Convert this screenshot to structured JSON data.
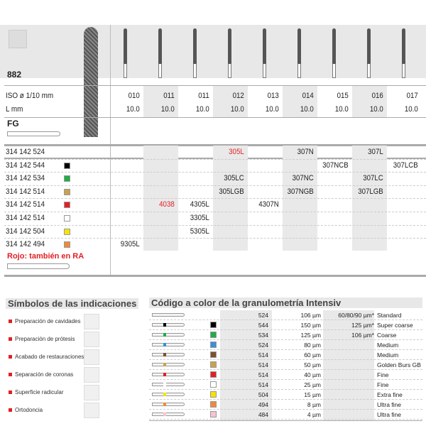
{
  "header": {
    "model": "882",
    "iso_label": "ISO ø 1/10 mm",
    "length_label": "L mm",
    "shank_label": "FG"
  },
  "columns": [
    {
      "iso": "010",
      "l": "10.0",
      "shaded": false
    },
    {
      "iso": "011",
      "l": "10.0",
      "shaded": true
    },
    {
      "iso": "011",
      "l": "10.0",
      "shaded": false
    },
    {
      "iso": "012",
      "l": "10.0",
      "shaded": true
    },
    {
      "iso": "013",
      "l": "10.0",
      "shaded": false
    },
    {
      "iso": "014",
      "l": "10.0",
      "shaded": true
    },
    {
      "iso": "015",
      "l": "10.0",
      "shaded": false
    },
    {
      "iso": "016",
      "l": "10.0",
      "shaded": true
    },
    {
      "iso": "017",
      "l": "10.0",
      "shaded": false
    }
  ],
  "rows": [
    {
      "code": "314 142 524",
      "color": null,
      "cells": [
        "",
        "",
        "",
        "305L",
        "",
        "307N",
        "",
        "307L",
        ""
      ],
      "red": [
        3
      ]
    },
    {
      "code": "314 142 544",
      "color": "#000000",
      "cells": [
        "",
        "",
        "",
        "",
        "",
        "",
        "307NCB",
        "",
        "307LCB"
      ]
    },
    {
      "code": "314 142 534",
      "color": "#1fae47",
      "cells": [
        "",
        "",
        "",
        "305LC",
        "",
        "307NC",
        "",
        "307LC",
        ""
      ]
    },
    {
      "code": "314 142 514",
      "color": "#c9a24f",
      "cells": [
        "",
        "",
        "",
        "305LGB",
        "",
        "307NGB",
        "",
        "307LGB",
        ""
      ]
    },
    {
      "code": "314 142 514",
      "color": "#e31e24",
      "cells": [
        "",
        "4038",
        "4305L",
        "",
        "4307N",
        "",
        "",
        "",
        ""
      ],
      "red": [
        1
      ]
    },
    {
      "code": "314 142 514",
      "color": "#ffffff",
      "cells": [
        "",
        "",
        "3305L",
        "",
        "",
        "",
        "",
        "",
        ""
      ]
    },
    {
      "code": "314 142 504",
      "color": "#f5e400",
      "cells": [
        "",
        "",
        "5305L",
        "",
        "",
        "",
        "",
        "",
        ""
      ]
    },
    {
      "code": "314 142 494",
      "color": "#ee8a3a",
      "cells": [
        "9305L",
        "",
        "",
        "",
        "",
        "",
        "",
        "",
        ""
      ]
    }
  ],
  "ra_note": "Rojo: también en RA",
  "indications": {
    "title": "Símbolos de las indicaciones",
    "items": [
      "Preparación de cavidades",
      "Preparación de prótesis",
      "Acabado de restauraciones",
      "Separación de coronas",
      "Superficie radicular",
      "Ortodoncia"
    ]
  },
  "grit": {
    "title": "Código a color de la granulometría Intensiv",
    "rows": [
      {
        "color": null,
        "code": "524",
        "size": "106 µm",
        "alt": "60/80/90 µm*",
        "label": "Standard"
      },
      {
        "color": "#000000",
        "code": "544",
        "size": "150 µm",
        "alt": "125 µm*",
        "label": "Super coarse"
      },
      {
        "color": "#1fae47",
        "code": "534",
        "size": "125 µm",
        "alt": "106 µm*",
        "label": "Coarse"
      },
      {
        "color": "#3a8fd9",
        "code": "524",
        "size": "80 µm",
        "alt": "",
        "label": "Medium"
      },
      {
        "color": "#7a5230",
        "code": "514",
        "size": "60 µm",
        "alt": "",
        "label": "Medium"
      },
      {
        "color": "#c9a24f",
        "code": "514",
        "size": "50 µm",
        "alt": "",
        "label": "Golden Burs GB"
      },
      {
        "color": "#e31e24",
        "code": "514",
        "size": "40 µm",
        "alt": "",
        "label": "Fine"
      },
      {
        "color": "#ffffff",
        "code": "514",
        "size": "25 µm",
        "alt": "",
        "label": "Fine"
      },
      {
        "color": "#f5e400",
        "code": "504",
        "size": "15 µm",
        "alt": "",
        "label": "Extra fine"
      },
      {
        "color": "#ee8a3a",
        "code": "494",
        "size": "8 µm",
        "alt": "",
        "label": "Ultra fine"
      },
      {
        "color": "#f6c3d3",
        "code": "484",
        "size": "4 µm",
        "alt": "",
        "label": "Ultra fine"
      }
    ]
  },
  "colors": {
    "accent_red": "#e31e24",
    "shade": "#e9e9e9"
  }
}
